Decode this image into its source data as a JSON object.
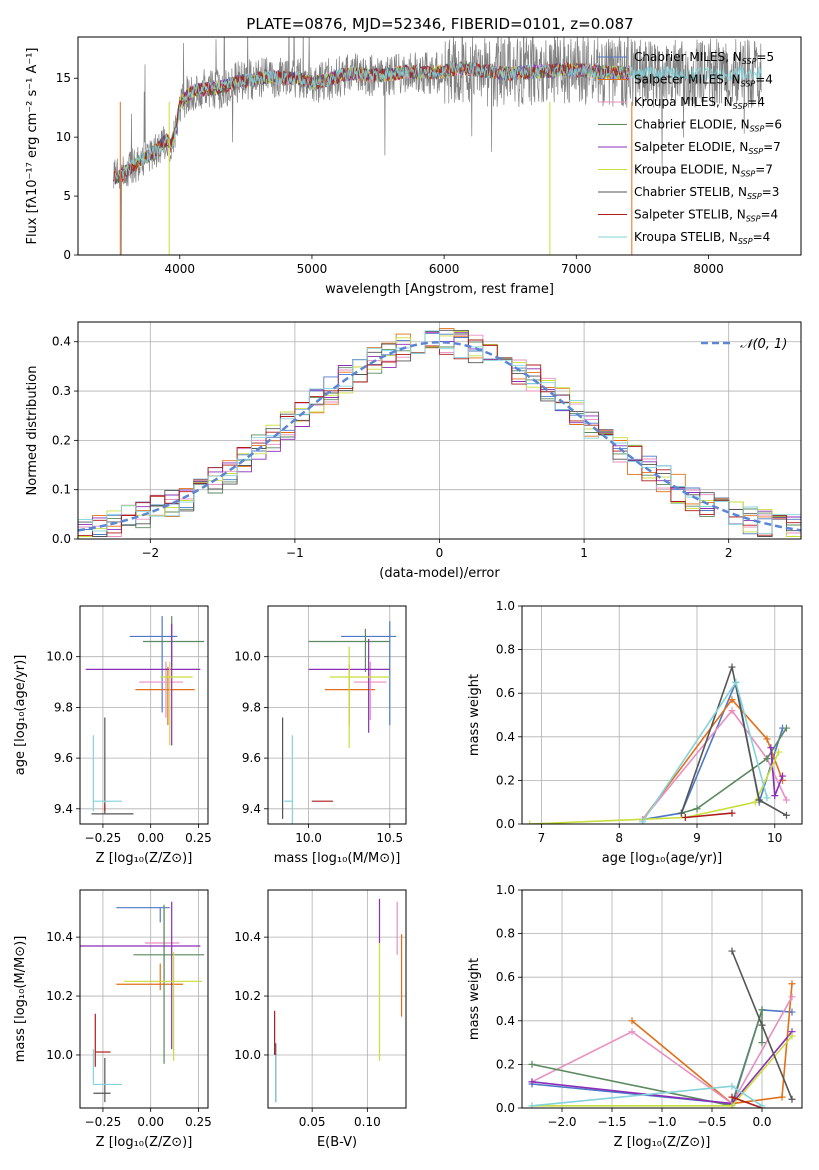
{
  "figure_title": "PLATE=0876, MJD=52346, FIBERID=0101, z=0.087",
  "models": [
    {
      "name": "Chabrier MILES",
      "nssp": "5",
      "color": "#4e79c7"
    },
    {
      "name": "Salpeter MILES",
      "nssp": "4",
      "color": "#e0711a"
    },
    {
      "name": "Kroupa MILES",
      "nssp": "4",
      "color": "#e88fc2"
    },
    {
      "name": "Chabrier ELODIE",
      "nssp": "6",
      "color": "#5b8a5f"
    },
    {
      "name": "Salpeter ELODIE",
      "nssp": "7",
      "color": "#8b2fb8"
    },
    {
      "name": "Kroupa ELODIE",
      "nssp": "7",
      "color": "#c9de3c"
    },
    {
      "name": "Chabrier STELIB",
      "nssp": "3",
      "color": "#555555"
    },
    {
      "name": "Salpeter STELIB",
      "nssp": "4",
      "color": "#b01c1c"
    },
    {
      "name": "Kroupa STELIB",
      "nssp": "4",
      "color": "#84d3d9"
    }
  ],
  "chart_data": [
    {
      "id": "spectrum",
      "type": "line",
      "xlabel": "wavelength [Angstrom, rest frame]",
      "ylabel": "Flux [fλ10⁻¹⁷ erg cm⁻² s⁻¹ A⁻¹]",
      "xlim": [
        3230,
        8700
      ],
      "ylim": [
        0,
        18.5
      ],
      "xticks": [
        4000,
        5000,
        6000,
        7000,
        8000
      ],
      "yticks": [
        0,
        5,
        10,
        15
      ],
      "grid": false,
      "legend": "upper-right",
      "continuum": {
        "x": [
          3500,
          3560,
          3620,
          3700,
          3800,
          3900,
          3930,
          3970,
          4000,
          4050,
          4100,
          4200,
          4300,
          4400,
          4500,
          4600,
          4700,
          4800,
          4900,
          5000,
          5100,
          5200,
          5300,
          5400,
          5500,
          5600,
          5700,
          5800,
          5900,
          6000,
          6100,
          6200,
          6300,
          6400,
          6500,
          6600,
          6700,
          6800,
          6900,
          7000,
          7100,
          7200,
          7300,
          7400
        ],
        "y": [
          6.5,
          6.8,
          7.3,
          8.0,
          8.7,
          9.8,
          9.2,
          10.5,
          12.8,
          13.4,
          14.0,
          14.1,
          14.2,
          14.6,
          14.8,
          15.0,
          15.1,
          15.0,
          15.0,
          14.6,
          14.8,
          15.2,
          15.4,
          15.3,
          15.2,
          15.3,
          15.6,
          15.5,
          15.4,
          15.6,
          15.8,
          15.8,
          15.6,
          15.5,
          15.4,
          15.5,
          15.6,
          15.6,
          15.7,
          15.7,
          15.6,
          15.5,
          15.5,
          15.4
        ]
      }
    },
    {
      "id": "residuals",
      "type": "histogram",
      "xlabel": "(data-model)/error",
      "ylabel": "Normed distribution",
      "xlim": [
        -2.5,
        2.5
      ],
      "ylim": [
        0,
        0.44
      ],
      "xticks": [
        -2,
        -1,
        0,
        1,
        2
      ],
      "yticks": [
        0.0,
        0.1,
        0.2,
        0.3,
        0.4
      ],
      "grid": true,
      "legend": "upper-right",
      "reference_label": "𝒩(0, 1)",
      "bin_width": 0.1
    },
    {
      "id": "age-vs-z",
      "type": "errorbar",
      "xlabel": "Z [log₁₀(Z/Z⊙)]",
      "ylabel": "age  [log₁₀(age/yr)]",
      "xlim": [
        -0.37,
        0.3
      ],
      "ylim": [
        9.34,
        10.2
      ],
      "xticks": [
        -0.25,
        0.0,
        0.25
      ],
      "yticks": [
        9.4,
        9.6,
        9.8,
        10.0
      ],
      "grid": true,
      "points": [
        {
          "model": 0,
          "x": 0.06,
          "xerr": [
            0.17,
            0.08
          ],
          "y": 10.08,
          "yerr": [
            0.3,
            0.08
          ]
        },
        {
          "model": 1,
          "x": 0.09,
          "xerr": [
            0.17,
            0.14
          ],
          "y": 9.87,
          "yerr": [
            0.14,
            0.09
          ]
        },
        {
          "model": 2,
          "x": 0.08,
          "xerr": [
            0.14,
            0.09
          ],
          "y": 9.9,
          "yerr": [
            0.14,
            0.08
          ]
        },
        {
          "model": 3,
          "x": 0.11,
          "xerr": [
            0.15,
            0.17
          ],
          "y": 10.06,
          "yerr": [
            0.1,
            0.1
          ]
        },
        {
          "model": 4,
          "x": 0.11,
          "xerr": [
            0.45,
            0.15
          ],
          "y": 9.95,
          "yerr": [
            0.3,
            0.18
          ]
        },
        {
          "model": 5,
          "x": 0.1,
          "xerr": [
            0.05,
            0.12
          ],
          "y": 9.92,
          "yerr": [
            0.27,
            0.06
          ]
        },
        {
          "model": 6,
          "x": -0.24,
          "xerr": [
            0.07,
            0.15
          ],
          "y": 9.38,
          "yerr": [
            0.0,
            0.38
          ]
        },
        {
          "model": 7,
          "x": -0.24,
          "xerr": [
            0.0,
            0.0
          ],
          "y": 9.42,
          "yerr": [
            0.03,
            0.0
          ]
        },
        {
          "model": 8,
          "x": -0.3,
          "xerr": [
            0.0,
            0.15
          ],
          "y": 9.43,
          "yerr": [
            0.04,
            0.26
          ]
        }
      ]
    },
    {
      "id": "age-vs-mass",
      "type": "errorbar",
      "xlabel": "mass [log₁₀(M/M⊙)]",
      "ylabel": "",
      "xlim": [
        9.75,
        10.6
      ],
      "ylim": [
        9.34,
        10.2
      ],
      "xticks": [
        10.0,
        10.5
      ],
      "yticks": [
        9.4,
        9.6,
        9.8,
        10.0
      ],
      "grid": true,
      "points": [
        {
          "model": 0,
          "x": 10.5,
          "xerr": [
            0.3,
            0.04
          ],
          "y": 10.08,
          "yerr": [
            0.35,
            0.06
          ]
        },
        {
          "model": 1,
          "x": 10.25,
          "xerr": [
            0.15,
            0.16
          ],
          "y": 9.87,
          "yerr": [
            0.14,
            0.1
          ]
        },
        {
          "model": 2,
          "x": 10.38,
          "xerr": [
            0.1,
            0.1
          ],
          "y": 9.9,
          "yerr": [
            0.15,
            0.08
          ]
        },
        {
          "model": 3,
          "x": 10.35,
          "xerr": [
            0.35,
            0.15
          ],
          "y": 10.06,
          "yerr": [
            0.12,
            0.05
          ]
        },
        {
          "model": 4,
          "x": 10.37,
          "xerr": [
            0.37,
            0.13
          ],
          "y": 9.95,
          "yerr": [
            0.25,
            0.12
          ]
        },
        {
          "model": 5,
          "x": 10.25,
          "xerr": [
            0.12,
            0.25
          ],
          "y": 9.92,
          "yerr": [
            0.28,
            0.12
          ]
        },
        {
          "model": 6,
          "x": 9.84,
          "xerr": [
            0.0,
            0.0
          ],
          "y": 9.58,
          "yerr": [
            0.22,
            0.18
          ]
        },
        {
          "model": 7,
          "x": 10.02,
          "xerr": [
            0.0,
            0.13
          ],
          "y": 9.43,
          "yerr": [
            0.0,
            0.0
          ]
        },
        {
          "model": 8,
          "x": 9.9,
          "xerr": [
            0.05,
            0.0
          ],
          "y": 9.43,
          "yerr": [
            0.1,
            0.26
          ]
        }
      ]
    },
    {
      "id": "weight-vs-age",
      "type": "line",
      "xlabel": "age  [log₁₀(age/yr)]",
      "ylabel": "mass weight",
      "xlim": [
        6.75,
        10.35
      ],
      "ylim": [
        0,
        1
      ],
      "xticks": [
        7,
        8,
        9,
        10
      ],
      "yticks": [
        0.0,
        0.2,
        0.4,
        0.6,
        0.8,
        1.0
      ],
      "grid": true,
      "series": [
        {
          "model": 0,
          "x": [
            8.3,
            8.8,
            9.5,
            9.8,
            10.1
          ],
          "y": [
            0.02,
            0.05,
            0.65,
            0.1,
            0.44
          ]
        },
        {
          "model": 1,
          "x": [
            8.3,
            9.45,
            9.9,
            10.1
          ],
          "y": [
            0.02,
            0.57,
            0.39,
            0.2
          ]
        },
        {
          "model": 2,
          "x": [
            8.3,
            9.45,
            9.9,
            10.15
          ],
          "y": [
            0.02,
            0.52,
            0.3,
            0.11
          ]
        },
        {
          "model": 3,
          "x": [
            8.8,
            9.0,
            9.9,
            10.15
          ],
          "y": [
            0.05,
            0.07,
            0.3,
            0.44
          ]
        },
        {
          "model": 4,
          "x": [
            9.95,
            10.0,
            10.1
          ],
          "y": [
            0.35,
            0.13,
            0.22
          ]
        },
        {
          "model": 5,
          "x": [
            6.85,
            8.85,
            9.75,
            10.05
          ],
          "y": [
            0.0,
            0.03,
            0.1,
            0.33
          ]
        },
        {
          "model": 6,
          "x": [
            8.8,
            9.45,
            9.8,
            10.15
          ],
          "y": [
            0.05,
            0.72,
            0.11,
            0.04
          ]
        },
        {
          "model": 7,
          "x": [
            8.85,
            9.45
          ],
          "y": [
            0.03,
            0.05
          ]
        },
        {
          "model": 8,
          "x": [
            8.3,
            9.5,
            9.9
          ],
          "y": [
            0.01,
            0.65,
            0.12
          ]
        }
      ]
    },
    {
      "id": "mass-vs-z",
      "type": "errorbar",
      "xlabel": "Z [log₁₀(Z/Z⊙)]",
      "ylabel": "mass [log₁₀(M/M⊙)]",
      "xlim": [
        -0.37,
        0.3
      ],
      "ylim": [
        9.82,
        10.56
      ],
      "xticks": [
        -0.25,
        0.0,
        0.25
      ],
      "yticks": [
        10.0,
        10.2,
        10.4
      ],
      "grid": true,
      "points": [
        {
          "model": 0,
          "x": 0.05,
          "xerr": [
            0.23,
            0.05
          ],
          "y": 10.5,
          "yerr": [
            0.05,
            0.0
          ]
        },
        {
          "model": 1,
          "x": 0.05,
          "xerr": [
            0.23,
            0.12
          ],
          "y": 10.24,
          "yerr": [
            0.02,
            0.07
          ]
        },
        {
          "model": 2,
          "x": 0.07,
          "xerr": [
            0.1,
            0.08
          ],
          "y": 10.38,
          "yerr": [
            0.12,
            0.12
          ]
        },
        {
          "model": 3,
          "x": 0.07,
          "xerr": [
            0.16,
            0.21
          ],
          "y": 10.34,
          "yerr": [
            0.37,
            0.17
          ]
        },
        {
          "model": 4,
          "x": 0.11,
          "xerr": [
            0.49,
            0.15
          ],
          "y": 10.37,
          "yerr": [
            0.35,
            0.15
          ]
        },
        {
          "model": 5,
          "x": 0.12,
          "xerr": [
            0.26,
            0.15
          ],
          "y": 10.25,
          "yerr": [
            0.27,
            0.1
          ]
        },
        {
          "model": 6,
          "x": -0.24,
          "xerr": [
            0.06,
            0.03
          ],
          "y": 9.87,
          "yerr": [
            0.03,
            0.12
          ]
        },
        {
          "model": 7,
          "x": -0.29,
          "xerr": [
            0.0,
            0.08
          ],
          "y": 10.01,
          "yerr": [
            0.05,
            0.13
          ]
        },
        {
          "model": 8,
          "x": -0.3,
          "xerr": [
            0.0,
            0.15
          ],
          "y": 9.9,
          "yerr": [
            0.0,
            0.12
          ]
        }
      ]
    },
    {
      "id": "mass-vs-ebv",
      "type": "errorbar",
      "xlabel": "E(B-V)",
      "ylabel": "",
      "xlim": [
        0.01,
        0.135
      ],
      "ylim": [
        9.82,
        10.56
      ],
      "xticks": [
        0.05,
        0.1
      ],
      "yticks": [
        10.0,
        10.2,
        10.4
      ],
      "grid": true,
      "points": [
        {
          "model": 2,
          "x": 0.127,
          "xerr": [
            0,
            0
          ],
          "y": 10.38,
          "yerr": [
            0.04,
            0.14
          ]
        },
        {
          "model": 1,
          "x": 0.131,
          "xerr": [
            0,
            0
          ],
          "y": 10.27,
          "yerr": [
            0.14,
            0.14
          ]
        },
        {
          "model": 4,
          "x": 0.111,
          "xerr": [
            0,
            0
          ],
          "y": 10.45,
          "yerr": [
            0.07,
            0.08
          ]
        },
        {
          "model": 5,
          "x": 0.111,
          "xerr": [
            0,
            0
          ],
          "y": 10.18,
          "yerr": [
            0.2,
            0.2
          ]
        },
        {
          "model": 7,
          "x": 0.016,
          "xerr": [
            0,
            0
          ],
          "y": 10.05,
          "yerr": [
            0.05,
            0.1
          ]
        },
        {
          "model": 6,
          "x": 0.017,
          "xerr": [
            0,
            0
          ],
          "y": 9.94,
          "yerr": [
            0.1,
            0.1
          ]
        },
        {
          "model": 8,
          "x": 0.017,
          "xerr": [
            0,
            0
          ],
          "y": 9.92,
          "yerr": [
            0.08,
            0.08
          ]
        }
      ]
    },
    {
      "id": "weight-vs-z",
      "type": "line",
      "xlabel": "Z [log₁₀(Z/Z⊙)]",
      "ylabel": "mass weight",
      "xlim": [
        -2.4,
        0.4
      ],
      "ylim": [
        0,
        1
      ],
      "xticks": [
        -2.0,
        -1.5,
        -1.0,
        -0.5,
        0.0
      ],
      "yticks": [
        0.0,
        0.2,
        0.4,
        0.6,
        0.8,
        1.0
      ],
      "grid": true,
      "series": [
        {
          "model": 0,
          "x": [
            -2.3,
            -0.3,
            0.0,
            0.3
          ],
          "y": [
            0.11,
            0.02,
            0.45,
            0.44
          ]
        },
        {
          "model": 1,
          "x": [
            -1.3,
            -0.3,
            0.2,
            0.3
          ],
          "y": [
            0.4,
            0.02,
            0.05,
            0.57
          ]
        },
        {
          "model": 2,
          "x": [
            -2.3,
            -1.3,
            -0.3,
            0.3
          ],
          "y": [
            0.12,
            0.35,
            0.02,
            0.51
          ]
        },
        {
          "model": 3,
          "x": [
            -2.3,
            -0.3,
            0.0,
            0.0
          ],
          "y": [
            0.2,
            0.01,
            0.45,
            0.3
          ]
        },
        {
          "model": 4,
          "x": [
            -2.3,
            -0.3,
            0.3
          ],
          "y": [
            0.12,
            0.02,
            0.35
          ]
        },
        {
          "model": 5,
          "x": [
            -2.3,
            -0.3,
            0.3
          ],
          "y": [
            0.01,
            0.01,
            0.33
          ]
        },
        {
          "model": 6,
          "x": [
            -0.3,
            0.0,
            0.3
          ],
          "y": [
            0.72,
            0.38,
            0.04
          ]
        },
        {
          "model": 7,
          "x": [
            -0.3,
            0.0
          ],
          "y": [
            0.05,
            0.0
          ]
        },
        {
          "model": 8,
          "x": [
            -2.3,
            -0.3,
            0.0
          ],
          "y": [
            0.01,
            0.1,
            0.01
          ]
        }
      ]
    }
  ]
}
